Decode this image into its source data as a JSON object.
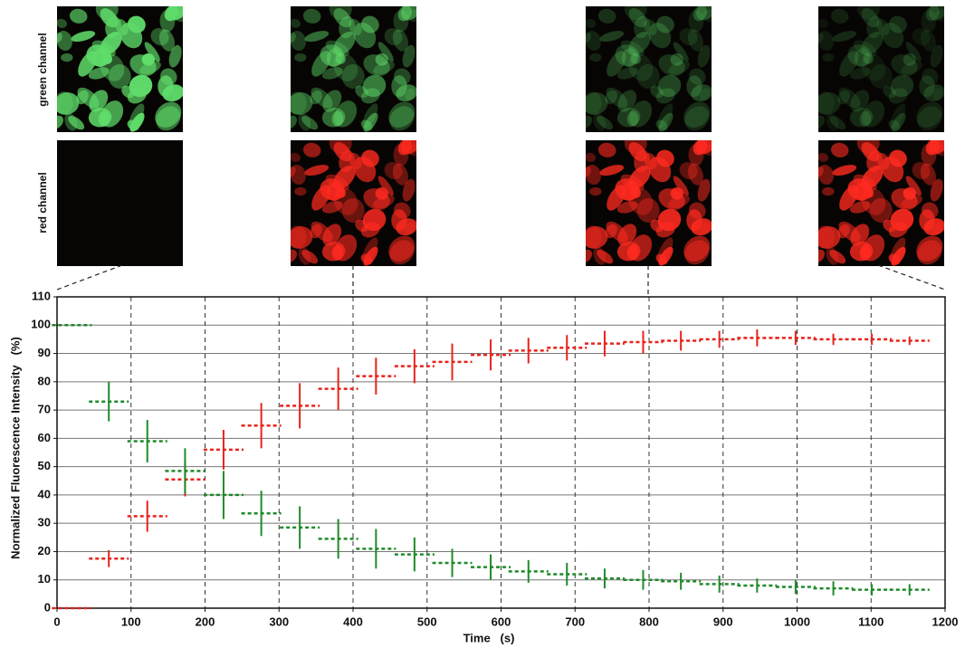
{
  "panel_labels": [
    "green channel",
    "red channel"
  ],
  "chart_data": {
    "type": "errorbar",
    "x_label": "Time   (s)",
    "y_label": "Normalized Fluorescence Intensity   (%)",
    "x": [
      20,
      70,
      122,
      173,
      225,
      276,
      328,
      380,
      431,
      483,
      534,
      586,
      637,
      689,
      740,
      792,
      843,
      895,
      946,
      998,
      1049,
      1101,
      1152
    ],
    "series": [
      {
        "name": "red channel",
        "color": "#e8231c",
        "values": [
          0,
          17.5,
          32.5,
          45.5,
          56,
          64.5,
          71.5,
          77.5,
          82,
          85.5,
          87,
          89.5,
          91,
          92,
          93.5,
          94,
          94.5,
          95,
          95.5,
          95.5,
          95,
          95,
          94.5
        ],
        "errors": [
          null,
          3,
          5.5,
          6,
          7,
          8,
          8,
          7.5,
          6.5,
          6,
          6.5,
          5.5,
          4.5,
          4.5,
          4.5,
          4,
          3.5,
          3,
          3,
          2.5,
          2,
          2,
          1.5
        ]
      },
      {
        "name": "green channel",
        "color": "#1f8a2a",
        "values": [
          100,
          73,
          59,
          48.5,
          40,
          33.5,
          28.5,
          24.5,
          21,
          19,
          16,
          14.5,
          13,
          12,
          10.5,
          10,
          9.5,
          8.5,
          8,
          7.5,
          7,
          6.5,
          6.5
        ],
        "errors": [
          null,
          7,
          7.5,
          8,
          8.5,
          8,
          7.5,
          7,
          7,
          6,
          5,
          4.5,
          4,
          4,
          3.5,
          3.5,
          3,
          3,
          2.5,
          2.5,
          2.5,
          2,
          2
        ]
      }
    ],
    "xlim": [
      0,
      1200
    ],
    "xticks": [
      0,
      100,
      200,
      300,
      400,
      500,
      600,
      700,
      800,
      900,
      1000,
      1100,
      1200
    ],
    "ylim": [
      0,
      110
    ],
    "yticks": [
      0,
      10,
      20,
      30,
      40,
      50,
      60,
      70,
      80,
      90,
      100,
      110
    ],
    "grid": true
  }
}
